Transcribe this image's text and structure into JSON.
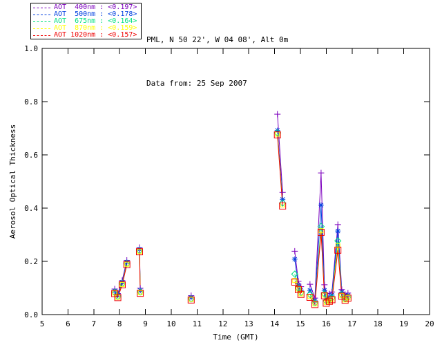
{
  "header": {
    "title_line1": "PML, N 50 22', W 04 08', Alt 0m",
    "title_line2": "Data from: 25 Sep 2007"
  },
  "legend": {
    "items": [
      {
        "label": "AOT  400nm : <0.197>",
        "color": "#7d00be"
      },
      {
        "label": "AOT  500nm : <0.178>",
        "color": "#0040e0"
      },
      {
        "label": "AOT  675nm : <0.164>",
        "color": "#00e080"
      },
      {
        "label": "AOT  870nm : <0.159>",
        "color": "#ffff00"
      },
      {
        "label": "AOT 1020nm : <0.157>",
        "color": "#ee0000"
      }
    ]
  },
  "chart_data": {
    "type": "line",
    "title": "",
    "xlabel": "Time (GMT)",
    "ylabel": "Aerosol Optical Thickness",
    "xlim": [
      5,
      20
    ],
    "ylim": [
      0.0,
      1.0
    ],
    "x_ticks": [
      5,
      6,
      7,
      8,
      9,
      10,
      11,
      12,
      13,
      14,
      15,
      16,
      17,
      18,
      19,
      20
    ],
    "y_ticks": [
      0.0,
      0.2,
      0.4,
      0.6,
      0.8,
      1.0
    ],
    "grid": false,
    "legend_position": "top-left-outside",
    "x": [
      7.81,
      7.93,
      8.1,
      8.28,
      8.77,
      8.8,
      10.77,
      14.11,
      14.31,
      14.78,
      14.92,
      15.02,
      15.37,
      15.56,
      15.8,
      15.93,
      16.0,
      16.12,
      16.22,
      16.45,
      16.6,
      16.73,
      16.84
    ],
    "segments": [
      [
        0,
        3
      ],
      [
        4,
        5
      ],
      [
        6,
        6
      ],
      [
        7,
        8
      ],
      [
        9,
        11
      ],
      [
        12,
        22
      ]
    ],
    "series": [
      {
        "name": "AOT 400nm",
        "mean": "<0.197>",
        "color": "#7d00be",
        "symbol": "plus",
        "values": [
          0.096,
          0.079,
          0.128,
          0.204,
          0.252,
          0.099,
          0.071,
          0.753,
          0.459,
          0.238,
          0.125,
          0.105,
          0.114,
          0.062,
          0.532,
          0.112,
          0.08,
          0.078,
          0.085,
          0.338,
          0.094,
          0.076,
          0.081
        ]
      },
      {
        "name": "AOT 500nm",
        "mean": "<0.178>",
        "color": "#0040e0",
        "symbol": "asterisk",
        "values": [
          0.089,
          0.072,
          0.121,
          0.197,
          0.245,
          0.091,
          0.064,
          0.692,
          0.433,
          0.208,
          0.11,
          0.092,
          0.091,
          0.052,
          0.411,
          0.091,
          0.065,
          0.066,
          0.073,
          0.314,
          0.084,
          0.066,
          0.072
        ]
      },
      {
        "name": "AOT 675nm",
        "mean": "<0.164>",
        "color": "#00e080",
        "symbol": "diamond",
        "values": [
          0.084,
          0.068,
          0.116,
          0.192,
          0.24,
          0.085,
          0.059,
          0.683,
          0.419,
          0.152,
          0.1,
          0.083,
          0.076,
          0.044,
          0.331,
          0.078,
          0.052,
          0.056,
          0.063,
          0.277,
          0.075,
          0.059,
          0.066
        ]
      },
      {
        "name": "AOT 870nm",
        "mean": "<0.159>",
        "color": "#ffff00",
        "symbol": "square",
        "values": [
          0.081,
          0.065,
          0.113,
          0.189,
          0.237,
          0.082,
          0.057,
          0.678,
          0.412,
          0.128,
          0.096,
          0.078,
          0.068,
          0.04,
          0.315,
          0.073,
          0.046,
          0.051,
          0.058,
          0.259,
          0.071,
          0.055,
          0.063
        ]
      },
      {
        "name": "AOT 1020nm",
        "mean": "<0.157>",
        "color": "#ee0000",
        "symbol": "square",
        "values": [
          0.079,
          0.064,
          0.112,
          0.188,
          0.236,
          0.08,
          0.055,
          0.675,
          0.408,
          0.122,
          0.094,
          0.076,
          0.065,
          0.038,
          0.309,
          0.071,
          0.043,
          0.05,
          0.056,
          0.242,
          0.069,
          0.054,
          0.062
        ]
      }
    ]
  }
}
